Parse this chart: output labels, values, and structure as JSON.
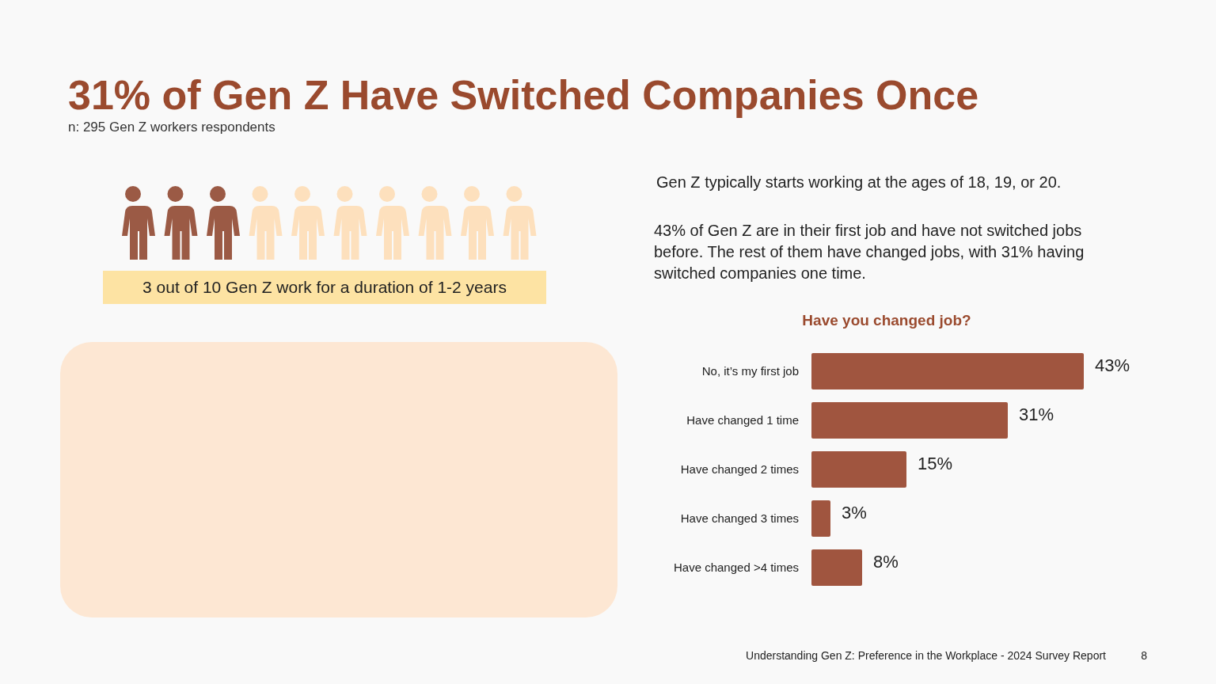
{
  "chart_data": {
    "type": "bar",
    "orientation": "horizontal",
    "title": "31% of Gen Z Have Switched Companies Once",
    "subtitle": "n: 295 Gen Z workers respondents",
    "categories": [
      "No, it’s my first job",
      "Have changed 1 time",
      "Have changed 2 times",
      "Have changed 3 times",
      "Have changed >4 times"
    ],
    "values": [
      43,
      31,
      15,
      3,
      8
    ],
    "value_labels": [
      "43%",
      "31%",
      "15%",
      "3%",
      "8%"
    ],
    "color": "#a0553f",
    "data_labels": true,
    "annotations": [
      "Have you changed job?",
      "3 out of 10 Gen Z work for a duration of 1-2 years",
      "Gen Z typically starts working at the ages of 18, 19, or 20.",
      "43% of Gen Z are in their first job and have not switched jobs before. The rest of them have changed jobs, with 31% having switched companies one time.",
      "Understanding Gen Z: Preference in the Workplace - 2024 Survey Report",
      "8"
    ]
  }
}
